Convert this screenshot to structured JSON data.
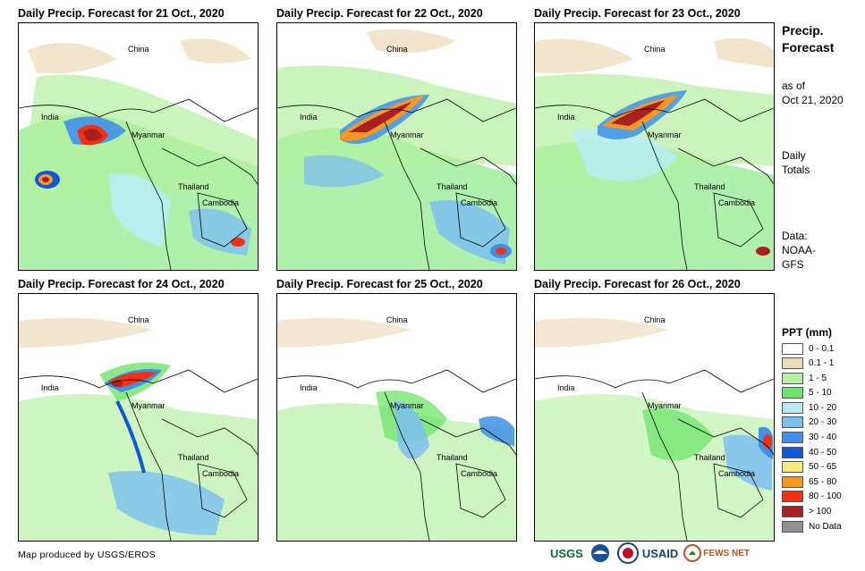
{
  "panels": [
    {
      "title": "Daily Precip. Forecast for 21 Oct., 2020"
    },
    {
      "title": "Daily Precip. Forecast for 22 Oct., 2020"
    },
    {
      "title": "Daily Precip. Forecast for 23 Oct., 2020"
    },
    {
      "title": "Daily Precip. Forecast for 24 Oct., 2020"
    },
    {
      "title": "Daily Precip. Forecast for 25 Oct., 2020"
    },
    {
      "title": "Daily Precip. Forecast for 26 Oct., 2020"
    }
  ],
  "country_labels": {
    "china": "China",
    "india": "India",
    "myanmar": "Myanmar",
    "thailand": "Thailand",
    "cambodia": "Cambodia"
  },
  "sidebar": {
    "title_line1": "Precip.",
    "title_line2": "Forecast",
    "asof_line1": "as of",
    "asof_line2": "Oct 21, 2020",
    "totals_line1": "Daily",
    "totals_line2": "Totals",
    "data_line1": "Data:",
    "data_line2": "NOAA-",
    "data_line3": "GFS"
  },
  "legend": {
    "title": "PPT (mm)",
    "items": [
      {
        "label": "0 - 0.1",
        "color": "#ffffff"
      },
      {
        "label": "0.1 - 1",
        "color": "#ecd9b8"
      },
      {
        "label": "1 - 5",
        "color": "#b4f0a0"
      },
      {
        "label": "5 - 10",
        "color": "#6ee46a"
      },
      {
        "label": "10 - 20",
        "color": "#b8ecf8"
      },
      {
        "label": "20 - 30",
        "color": "#7cc0f0"
      },
      {
        "label": "30 - 40",
        "color": "#4090e8"
      },
      {
        "label": "40 - 50",
        "color": "#1058d8"
      },
      {
        "label": "50 - 65",
        "color": "#f8e880"
      },
      {
        "label": "65 - 80",
        "color": "#f89820"
      },
      {
        "label": "80 - 100",
        "color": "#f03010"
      },
      {
        "label": "> 100",
        "color": "#a82020"
      },
      {
        "label": "No Data",
        "color": "#909090"
      }
    ]
  },
  "credit": "Map produced by USGS/EROS",
  "logos": {
    "usgs": "USGS",
    "usaid": "USAID",
    "fewsnet": "FEWS NET"
  }
}
